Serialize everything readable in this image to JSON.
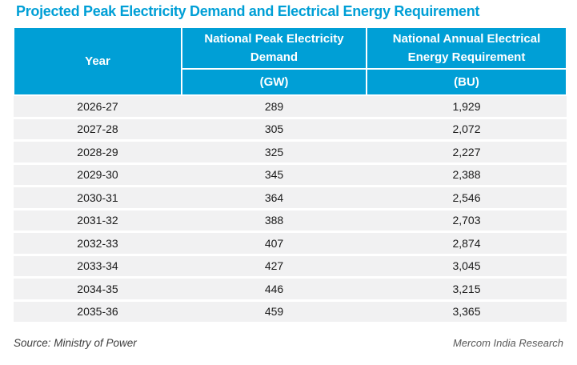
{
  "title": "Projected Peak Electricity Demand and Electrical Energy Requirement",
  "colors": {
    "accent": "#009fd6",
    "header_text": "#ffffff",
    "row_bg": "#f1f1f2",
    "body_text": "#1a1a1a",
    "source_text": "#3d3d3d",
    "brand_text": "#595959"
  },
  "table": {
    "columns": {
      "year_label": "Year",
      "gw_label": "National Peak Electricity Demand",
      "gw_unit": "(GW)",
      "bu_label": "National Annual Electrical Energy Requirement",
      "bu_unit": "(BU)"
    },
    "rows": [
      {
        "year": "2026-27",
        "gw": "289",
        "bu": "1,929"
      },
      {
        "year": "2027-28",
        "gw": "305",
        "bu": "2,072"
      },
      {
        "year": "2028-29",
        "gw": "325",
        "bu": "2,227"
      },
      {
        "year": "2029-30",
        "gw": "345",
        "bu": "2,388"
      },
      {
        "year": "2030-31",
        "gw": "364",
        "bu": "2,546"
      },
      {
        "year": "2031-32",
        "gw": "388",
        "bu": "2,703"
      },
      {
        "year": "2032-33",
        "gw": "407",
        "bu": "2,874"
      },
      {
        "year": "2033-34",
        "gw": "427",
        "bu": "3,045"
      },
      {
        "year": "2034-35",
        "gw": "446",
        "bu": "3,215"
      },
      {
        "year": "2035-36",
        "gw": "459",
        "bu": "3,365"
      }
    ]
  },
  "footer": {
    "source": "Source: Ministry of Power",
    "brand": "Mercom India Research"
  },
  "chart_data": {
    "type": "table",
    "title": "Projected Peak Electricity Demand and Electrical Energy Requirement",
    "columns": [
      "Year",
      "National Peak Electricity Demand (GW)",
      "National Annual Electrical Energy Requirement (BU)"
    ],
    "categories": [
      "2026-27",
      "2027-28",
      "2028-29",
      "2029-30",
      "2030-31",
      "2031-32",
      "2032-33",
      "2033-34",
      "2034-35",
      "2035-36"
    ],
    "series": [
      {
        "name": "National Peak Electricity Demand (GW)",
        "values": [
          289,
          305,
          325,
          345,
          364,
          388,
          407,
          427,
          446,
          459
        ]
      },
      {
        "name": "National Annual Electrical Energy Requirement (BU)",
        "values": [
          1929,
          2072,
          2227,
          2388,
          2546,
          2703,
          2874,
          3045,
          3215,
          3365
        ]
      }
    ],
    "source": "Source: Ministry of Power",
    "attribution": "Mercom India Research"
  }
}
